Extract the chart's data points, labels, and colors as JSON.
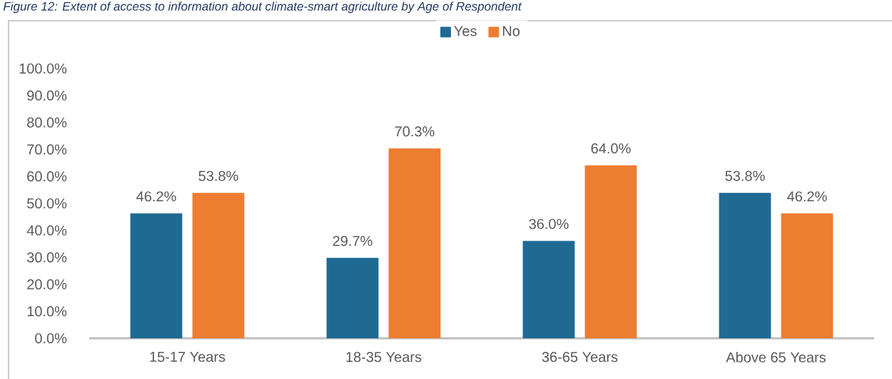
{
  "chart_data": {
    "type": "bar",
    "title": "Figure 12: Extent of access to information about climate-smart agriculture by Age of Respondent",
    "categories": [
      "15-17 Years",
      "18-35 Years",
      "36-65 Years",
      "Above 65 Years"
    ],
    "series": [
      {
        "name": "Yes",
        "color": "#1f6a93",
        "values": [
          46.2,
          29.7,
          36.0,
          53.8
        ],
        "value_labels": [
          "46.2%",
          "29.7%",
          "36.0%",
          "53.8%"
        ]
      },
      {
        "name": "No",
        "color": "#ed7d31",
        "values": [
          53.8,
          70.3,
          64.0,
          46.2
        ],
        "value_labels": [
          "53.8%",
          "70.3%",
          "64.0%",
          "46.2%"
        ]
      }
    ],
    "ylim": [
      0,
      100
    ],
    "yticks": [
      {
        "value": 0,
        "label": "0.0%"
      },
      {
        "value": 10,
        "label": "10.0%"
      },
      {
        "value": 20,
        "label": "20.0%"
      },
      {
        "value": 30,
        "label": "30.0%"
      },
      {
        "value": 40,
        "label": "40.0%"
      },
      {
        "value": 50,
        "label": "50.0%"
      },
      {
        "value": 60,
        "label": "60.0%"
      },
      {
        "value": 70,
        "label": "70.0%"
      },
      {
        "value": 80,
        "label": "80.0%"
      },
      {
        "value": 90,
        "label": "90.0%"
      },
      {
        "value": 100,
        "label": "100.0%"
      }
    ],
    "grid": false,
    "legend": "top"
  }
}
